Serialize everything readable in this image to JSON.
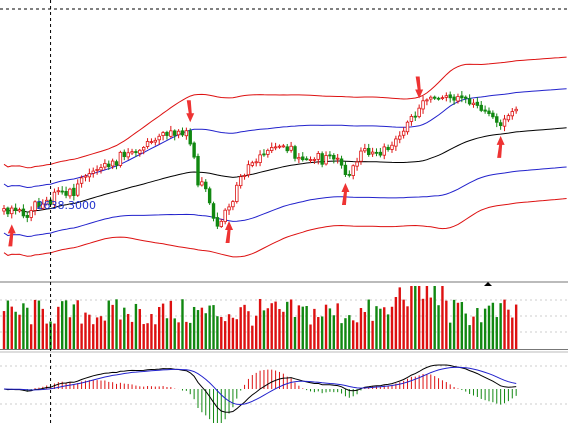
{
  "colors": {
    "background": "#ffffff",
    "up": "#dd1111",
    "down": "#118811",
    "outer_band": "#dd1111",
    "inner_band": "#2222cc",
    "middle_line": "#000000",
    "arrow": "#ee3333",
    "crosshair": "#000000",
    "grid": "#999999",
    "label": "#2233cc",
    "macd_line": "#000000",
    "signal_line": "#2222cc"
  },
  "chart_data": {
    "type": "candlestick",
    "title": "",
    "crosshair_label": "2638.3000",
    "price_axis": [
      2540,
      2980
    ],
    "close": [
      2650.0,
      2641.6,
      2650.7,
      2646.8,
      2648.2,
      2638.3,
      2635.8,
      2646.8,
      2660.6,
      2651.8,
      2657.0,
      2663.0,
      2656.5,
      2675.8,
      2678.1,
      2677.3,
      2670.8,
      2680.6,
      2670.4,
      2688.8,
      2698.5,
      2701.5,
      2705.2,
      2709.2,
      2711.8,
      2714.8,
      2721.4,
      2716.1,
      2725.1,
      2718.6,
      2738.9,
      2732.1,
      2738.2,
      2740.0,
      2738.4,
      2742.1,
      2746.7,
      2756.1,
      2755.9,
      2757.9,
      2764.3,
      2770.1,
      2765.5,
      2772.9,
      2765.7,
      2772.3,
      2766.4,
      2773.1,
      2752.1,
      2731.3,
      2687.2,
      2692.2,
      2681.2,
      2659.0,
      2634.5,
      2622.0,
      2629.7,
      2647.3,
      2652.5,
      2661.0,
      2686.8,
      2700.4,
      2702.2,
      2719.3,
      2722.4,
      2723.9,
      2734.9,
      2735.5,
      2742.0,
      2746.6,
      2747.5,
      2748.6,
      2749.1,
      2741.4,
      2748.5,
      2729.4,
      2730.7,
      2727.3,
      2728.0,
      2727.5,
      2727.7,
      2737.2,
      2720.0,
      2734.0,
      2733.7,
      2728.3,
      2729.6,
      2718.6,
      2703.7,
      2703.1,
      2717.7,
      2723.5,
      2740.9,
      2744.7,
      2735.3,
      2739.3,
      2738.0,
      2734.5,
      2747.5,
      2743.2,
      2750.1,
      2760.1,
      2764.8,
      2772.4,
      2786.6,
      2795.7,
      2794.6,
      2808.8,
      2820.5,
      2821.9,
      2826.1,
      2824.4,
      2823.9,
      2825.5,
      2828.5,
      2825.2,
      2821.5,
      2827.3,
      2825.1,
      2824.3,
      2815.5,
      2816.7,
      2813.1,
      2805.2,
      2804.0,
      2800.2,
      2795.1,
      2786.4,
      2781.2,
      2791.6,
      2797.0,
      2803.5,
      2807.0
    ]
  }
}
